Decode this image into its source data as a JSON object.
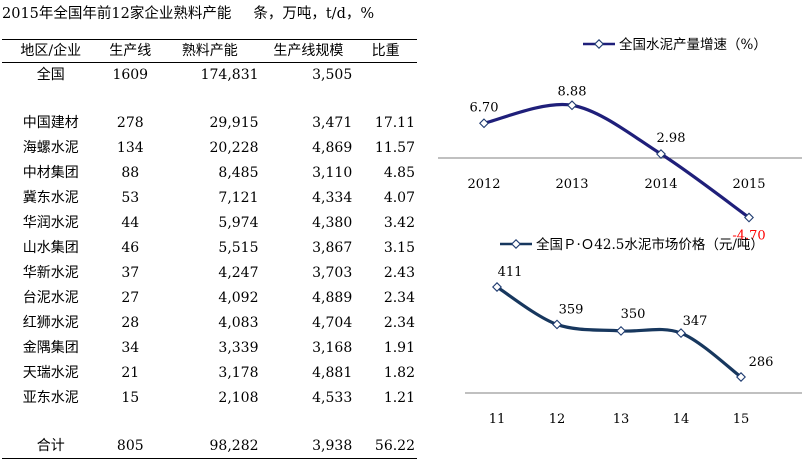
{
  "table": {
    "title": "2015年全国年前12家企业熟料产能",
    "unit": "条，万吨，t/d，%",
    "headers": [
      "地区/企业",
      "生产线",
      "熟料产能",
      "生产线规模",
      "比重"
    ],
    "national": {
      "name": "全国",
      "lines": "1609",
      "capacity": "174,831",
      "scale": "3,505",
      "share": ""
    },
    "rows": [
      {
        "name": "中国建材",
        "lines": "278",
        "capacity": "29,915",
        "scale": "3,471",
        "share": "17.11"
      },
      {
        "name": "海螺水泥",
        "lines": "134",
        "capacity": "20,228",
        "scale": "4,869",
        "share": "11.57"
      },
      {
        "name": "中材集团",
        "lines": "88",
        "capacity": "8,485",
        "scale": "3,110",
        "share": "4.85"
      },
      {
        "name": "冀东水泥",
        "lines": "53",
        "capacity": "7,121",
        "scale": "4,334",
        "share": "4.07"
      },
      {
        "name": "华润水泥",
        "lines": "44",
        "capacity": "5,974",
        "scale": "4,380",
        "share": "3.42"
      },
      {
        "name": "山水集团",
        "lines": "46",
        "capacity": "5,515",
        "scale": "3,867",
        "share": "3.15"
      },
      {
        "name": "华新水泥",
        "lines": "37",
        "capacity": "4,247",
        "scale": "3,703",
        "share": "2.43"
      },
      {
        "name": "台泥水泥",
        "lines": "27",
        "capacity": "4,092",
        "scale": "4,889",
        "share": "2.34"
      },
      {
        "name": "红狮水泥",
        "lines": "28",
        "capacity": "4,083",
        "scale": "4,704",
        "share": "2.34"
      },
      {
        "name": "金隅集团",
        "lines": "34",
        "capacity": "3,339",
        "scale": "3,168",
        "share": "1.91"
      },
      {
        "name": "天瑞水泥",
        "lines": "21",
        "capacity": "3,178",
        "scale": "4,881",
        "share": "1.82"
      },
      {
        "name": "亚东水泥",
        "lines": "15",
        "capacity": "2,108",
        "scale": "4,533",
        "share": "1.21"
      }
    ],
    "total": {
      "name": "合计",
      "lines": "805",
      "capacity": "98,282",
      "scale": "3,938",
      "share": "56.22"
    }
  },
  "chart_data": [
    {
      "type": "line",
      "title": "",
      "x": [
        "2012",
        "2013",
        "2014",
        "2015"
      ],
      "series": [
        {
          "name": "全国水泥产量增速（%）",
          "values": [
            6.7,
            8.88,
            2.98,
            -4.7
          ]
        }
      ],
      "labels": [
        "6.70",
        "8.88",
        "2.98",
        "-4.70"
      ],
      "xlabel": "",
      "ylabel": "",
      "ylim": [
        -5,
        10
      ],
      "grid": false,
      "legend": "top-right",
      "line_color": "#1f1f7a",
      "negative_label_color": "#ff0000"
    },
    {
      "type": "line",
      "title": "",
      "x": [
        "11",
        "12",
        "13",
        "14",
        "15"
      ],
      "series": [
        {
          "name": "全国Ｐ·Ｏ42.5水泥市场价格（元/吨）",
          "values": [
            411,
            359,
            350,
            347,
            286
          ]
        }
      ],
      "labels": [
        "411",
        "359",
        "350",
        "347",
        "286"
      ],
      "xlabel": "",
      "ylabel": "",
      "ylim": [
        250,
        420
      ],
      "grid": false,
      "legend": "top",
      "line_color": "#17375e"
    }
  ]
}
